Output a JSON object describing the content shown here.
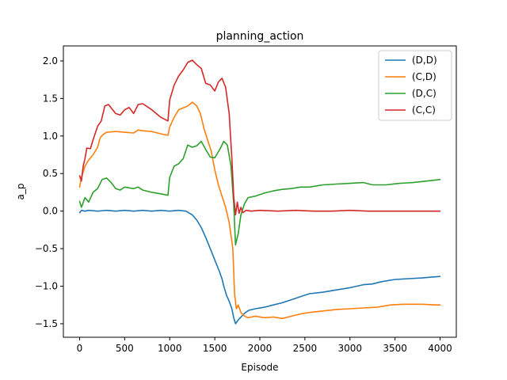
{
  "chart_data": {
    "type": "line",
    "title": "planning_action",
    "xlabel": "Episode",
    "ylabel": "a_p",
    "xlim": [
      -180,
      4180
    ],
    "ylim": [
      -1.68,
      2.2
    ],
    "xticks": [
      0,
      500,
      1000,
      1500,
      2000,
      2500,
      3000,
      3500,
      4000
    ],
    "yticks": [
      -1.5,
      -1.0,
      -0.5,
      0.0,
      0.5,
      1.0,
      1.5,
      2.0
    ],
    "ytick_labels": [
      "−1.5",
      "−1.0",
      "−0.5",
      "0.0",
      "0.5",
      "1.0",
      "1.5",
      "2.0"
    ],
    "grid": false,
    "legend_position": "top-right",
    "series": [
      {
        "name": "(D,D)",
        "color": "#1f77b4",
        "points": [
          [
            0,
            -0.02
          ],
          [
            20,
            0.01
          ],
          [
            60,
            0.0
          ],
          [
            100,
            0.01
          ],
          [
            200,
            0.0
          ],
          [
            300,
            0.01
          ],
          [
            400,
            0.0
          ],
          [
            500,
            0.01
          ],
          [
            600,
            0.0
          ],
          [
            700,
            0.01
          ],
          [
            800,
            0.0
          ],
          [
            900,
            0.01
          ],
          [
            1000,
            0.0
          ],
          [
            1100,
            0.01
          ],
          [
            1180,
            0.0
          ],
          [
            1250,
            -0.05
          ],
          [
            1300,
            -0.12
          ],
          [
            1350,
            -0.22
          ],
          [
            1400,
            -0.35
          ],
          [
            1450,
            -0.5
          ],
          [
            1500,
            -0.65
          ],
          [
            1550,
            -0.8
          ],
          [
            1580,
            -0.9
          ],
          [
            1600,
            -1.0
          ],
          [
            1630,
            -1.12
          ],
          [
            1660,
            -1.2
          ],
          [
            1690,
            -1.3
          ],
          [
            1710,
            -1.42
          ],
          [
            1730,
            -1.5
          ],
          [
            1760,
            -1.45
          ],
          [
            1800,
            -1.4
          ],
          [
            1840,
            -1.35
          ],
          [
            1880,
            -1.32
          ],
          [
            1950,
            -1.3
          ],
          [
            2050,
            -1.28
          ],
          [
            2150,
            -1.25
          ],
          [
            2250,
            -1.22
          ],
          [
            2350,
            -1.18
          ],
          [
            2450,
            -1.14
          ],
          [
            2550,
            -1.1
          ],
          [
            2700,
            -1.08
          ],
          [
            2850,
            -1.05
          ],
          [
            3000,
            -1.02
          ],
          [
            3150,
            -0.98
          ],
          [
            3250,
            -0.97
          ],
          [
            3350,
            -0.94
          ],
          [
            3500,
            -0.91
          ],
          [
            3650,
            -0.9
          ],
          [
            3800,
            -0.89
          ],
          [
            3900,
            -0.88
          ],
          [
            4000,
            -0.87
          ]
        ]
      },
      {
        "name": "(C,D)",
        "color": "#ff7f0e",
        "points": [
          [
            0,
            0.32
          ],
          [
            20,
            0.45
          ],
          [
            60,
            0.6
          ],
          [
            100,
            0.68
          ],
          [
            150,
            0.75
          ],
          [
            200,
            0.85
          ],
          [
            230,
            0.98
          ],
          [
            260,
            1.02
          ],
          [
            300,
            1.05
          ],
          [
            400,
            1.06
          ],
          [
            500,
            1.05
          ],
          [
            600,
            1.04
          ],
          [
            650,
            1.08
          ],
          [
            700,
            1.07
          ],
          [
            800,
            1.06
          ],
          [
            900,
            1.03
          ],
          [
            980,
            1.01
          ],
          [
            1000,
            1.12
          ],
          [
            1050,
            1.25
          ],
          [
            1100,
            1.35
          ],
          [
            1200,
            1.4
          ],
          [
            1250,
            1.45
          ],
          [
            1300,
            1.4
          ],
          [
            1340,
            1.3
          ],
          [
            1380,
            1.1
          ],
          [
            1420,
            0.95
          ],
          [
            1460,
            0.8
          ],
          [
            1500,
            0.55
          ],
          [
            1540,
            0.35
          ],
          [
            1580,
            0.2
          ],
          [
            1620,
            0.05
          ],
          [
            1660,
            -0.15
          ],
          [
            1700,
            -0.5
          ],
          [
            1720,
            -1.1
          ],
          [
            1740,
            -1.3
          ],
          [
            1760,
            -1.25
          ],
          [
            1790,
            -1.35
          ],
          [
            1830,
            -1.4
          ],
          [
            1870,
            -1.42
          ],
          [
            1950,
            -1.4
          ],
          [
            2050,
            -1.42
          ],
          [
            2150,
            -1.41
          ],
          [
            2250,
            -1.43
          ],
          [
            2350,
            -1.4
          ],
          [
            2450,
            -1.37
          ],
          [
            2550,
            -1.35
          ],
          [
            2700,
            -1.33
          ],
          [
            2850,
            -1.31
          ],
          [
            3000,
            -1.3
          ],
          [
            3150,
            -1.29
          ],
          [
            3300,
            -1.28
          ],
          [
            3450,
            -1.25
          ],
          [
            3600,
            -1.24
          ],
          [
            3800,
            -1.24
          ],
          [
            3950,
            -1.25
          ],
          [
            4000,
            -1.25
          ]
        ]
      },
      {
        "name": "(D,C)",
        "color": "#2ca02c",
        "points": [
          [
            0,
            0.13
          ],
          [
            20,
            0.05
          ],
          [
            60,
            0.18
          ],
          [
            100,
            0.12
          ],
          [
            150,
            0.25
          ],
          [
            200,
            0.3
          ],
          [
            250,
            0.42
          ],
          [
            300,
            0.44
          ],
          [
            350,
            0.38
          ],
          [
            400,
            0.3
          ],
          [
            450,
            0.28
          ],
          [
            500,
            0.32
          ],
          [
            550,
            0.31
          ],
          [
            600,
            0.3
          ],
          [
            650,
            0.32
          ],
          [
            700,
            0.28
          ],
          [
            800,
            0.25
          ],
          [
            900,
            0.23
          ],
          [
            980,
            0.21
          ],
          [
            1000,
            0.45
          ],
          [
            1050,
            0.6
          ],
          [
            1100,
            0.63
          ],
          [
            1150,
            0.7
          ],
          [
            1200,
            0.88
          ],
          [
            1250,
            0.85
          ],
          [
            1300,
            0.87
          ],
          [
            1350,
            0.93
          ],
          [
            1400,
            0.82
          ],
          [
            1450,
            0.72
          ],
          [
            1500,
            0.71
          ],
          [
            1560,
            0.83
          ],
          [
            1600,
            0.93
          ],
          [
            1640,
            0.88
          ],
          [
            1680,
            0.6
          ],
          [
            1710,
            0.1
          ],
          [
            1730,
            -0.45
          ],
          [
            1760,
            -0.3
          ],
          [
            1790,
            -0.05
          ],
          [
            1830,
            0.1
          ],
          [
            1870,
            0.18
          ],
          [
            1950,
            0.2
          ],
          [
            2050,
            0.24
          ],
          [
            2150,
            0.27
          ],
          [
            2250,
            0.29
          ],
          [
            2350,
            0.3
          ],
          [
            2450,
            0.32
          ],
          [
            2550,
            0.32
          ],
          [
            2700,
            0.35
          ],
          [
            2850,
            0.36
          ],
          [
            3000,
            0.37
          ],
          [
            3150,
            0.38
          ],
          [
            3250,
            0.35
          ],
          [
            3400,
            0.35
          ],
          [
            3550,
            0.37
          ],
          [
            3700,
            0.38
          ],
          [
            3850,
            0.4
          ],
          [
            4000,
            0.42
          ]
        ]
      },
      {
        "name": "(C,C)",
        "color": "#d62728",
        "points": [
          [
            0,
            0.47
          ],
          [
            20,
            0.4
          ],
          [
            40,
            0.6
          ],
          [
            60,
            0.7
          ],
          [
            80,
            0.84
          ],
          [
            120,
            0.83
          ],
          [
            150,
            0.95
          ],
          [
            200,
            1.13
          ],
          [
            240,
            1.2
          ],
          [
            280,
            1.4
          ],
          [
            320,
            1.42
          ],
          [
            400,
            1.3
          ],
          [
            450,
            1.28
          ],
          [
            500,
            1.35
          ],
          [
            550,
            1.38
          ],
          [
            600,
            1.3
          ],
          [
            650,
            1.42
          ],
          [
            700,
            1.43
          ],
          [
            800,
            1.35
          ],
          [
            900,
            1.25
          ],
          [
            980,
            1.2
          ],
          [
            1000,
            1.48
          ],
          [
            1050,
            1.68
          ],
          [
            1100,
            1.8
          ],
          [
            1150,
            1.88
          ],
          [
            1200,
            1.98
          ],
          [
            1250,
            2.01
          ],
          [
            1300,
            1.95
          ],
          [
            1350,
            1.9
          ],
          [
            1400,
            1.7
          ],
          [
            1450,
            1.68
          ],
          [
            1500,
            1.6
          ],
          [
            1540,
            1.72
          ],
          [
            1580,
            1.77
          ],
          [
            1620,
            1.65
          ],
          [
            1660,
            1.3
          ],
          [
            1690,
            0.7
          ],
          [
            1710,
            0.2
          ],
          [
            1730,
            -0.05
          ],
          [
            1750,
            0.12
          ],
          [
            1770,
            -0.03
          ],
          [
            1790,
            0.05
          ],
          [
            1810,
            -0.02
          ],
          [
            1850,
            0.01
          ],
          [
            1900,
            0.0
          ],
          [
            2000,
            0.01
          ],
          [
            2200,
            0.0
          ],
          [
            2400,
            0.01
          ],
          [
            2600,
            0.0
          ],
          [
            2800,
            0.0
          ],
          [
            3000,
            0.01
          ],
          [
            3200,
            0.0
          ],
          [
            3400,
            0.0
          ],
          [
            3600,
            0.0
          ],
          [
            3800,
            0.0
          ],
          [
            4000,
            0.0
          ]
        ]
      }
    ]
  }
}
